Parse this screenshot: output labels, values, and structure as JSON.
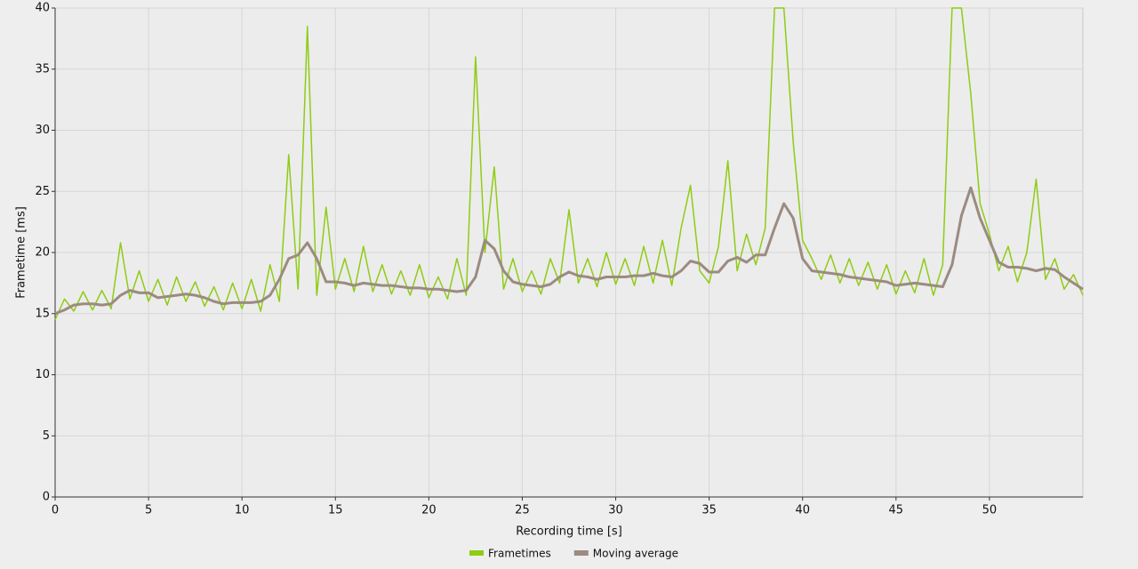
{
  "chart_data": {
    "type": "line",
    "x_label": "Recording time [s]",
    "y_label": "Frametime [ms]",
    "x": [
      0,
      0.5,
      1,
      1.5,
      2,
      2.5,
      3,
      3.5,
      4,
      4.5,
      5,
      5.5,
      6,
      6.5,
      7,
      7.5,
      8,
      8.5,
      9,
      9.5,
      10,
      10.5,
      11,
      11.5,
      12,
      12.5,
      13,
      13.5,
      14,
      14.5,
      15,
      15.5,
      16,
      16.5,
      17,
      17.5,
      18,
      18.5,
      19,
      19.5,
      20,
      20.5,
      21,
      21.5,
      22,
      22.5,
      23,
      23.5,
      24,
      24.5,
      25,
      25.5,
      26,
      26.5,
      27,
      27.5,
      28,
      28.5,
      29,
      29.5,
      30,
      30.5,
      31,
      31.5,
      32,
      32.5,
      33,
      33.5,
      34,
      34.5,
      35,
      35.5,
      36,
      36.5,
      37,
      37.5,
      38,
      38.5,
      39,
      39.5,
      40,
      40.5,
      41,
      41.5,
      42,
      42.5,
      43,
      43.5,
      44,
      44.5,
      45,
      45.5,
      46,
      46.5,
      47,
      47.5,
      48,
      48.5,
      49,
      49.5,
      50,
      50.5,
      51,
      51.5,
      52,
      52.5,
      53,
      53.5,
      54,
      54.5,
      55
    ],
    "series": [
      {
        "name": "Frametimes",
        "color": "#8fcc14",
        "values": [
          14.5,
          16.2,
          15.2,
          16.8,
          15.3,
          16.9,
          15.4,
          20.8,
          16.2,
          18.5,
          16,
          17.8,
          15.7,
          18,
          16,
          17.6,
          15.6,
          17.2,
          15.3,
          17.5,
          15.4,
          17.8,
          15.2,
          19,
          16,
          28,
          17,
          38.5,
          16.5,
          23.7,
          17,
          19.5,
          16.8,
          20.5,
          16.8,
          19,
          16.6,
          18.5,
          16.5,
          19,
          16.3,
          18,
          16.2,
          19.5,
          16.5,
          36,
          20,
          27,
          17,
          19.5,
          16.8,
          18.5,
          16.6,
          19.5,
          17.5,
          23.5,
          17.5,
          19.5,
          17.2,
          20,
          17.4,
          19.5,
          17.3,
          20.5,
          17.5,
          21,
          17.3,
          22,
          25.5,
          18.5,
          17.5,
          20.5,
          27.5,
          18.5,
          21.5,
          19,
          22,
          40,
          40,
          29,
          21,
          19.5,
          17.8,
          19.8,
          17.5,
          19.5,
          17.3,
          19.2,
          17,
          19,
          16.6,
          18.5,
          16.7,
          19.5,
          16.5,
          19,
          40,
          40,
          33,
          24,
          21.5,
          18.5,
          20.5,
          17.6,
          20,
          26,
          17.8,
          19.5,
          17,
          18.2,
          16.5
        ]
      },
      {
        "name": "Moving average",
        "color": "#9b8b80",
        "values": [
          15,
          15.3,
          15.7,
          15.8,
          15.8,
          15.7,
          15.8,
          16.5,
          16.9,
          16.7,
          16.7,
          16.3,
          16.4,
          16.5,
          16.6,
          16.5,
          16.3,
          16,
          15.8,
          15.9,
          15.9,
          15.9,
          16,
          16.5,
          17.8,
          19.5,
          19.8,
          20.8,
          19.5,
          17.6,
          17.6,
          17.5,
          17.3,
          17.5,
          17.4,
          17.3,
          17.3,
          17.2,
          17.1,
          17.1,
          17,
          17,
          16.9,
          16.8,
          16.9,
          18,
          21,
          20.3,
          18.5,
          17.6,
          17.4,
          17.3,
          17.2,
          17.4,
          18,
          18.4,
          18.1,
          18,
          17.8,
          18,
          18,
          18,
          18.1,
          18.1,
          18.3,
          18.1,
          18,
          18.5,
          19.3,
          19.1,
          18.4,
          18.4,
          19.3,
          19.6,
          19.2,
          19.8,
          19.8,
          22,
          24,
          22.8,
          19.5,
          18.5,
          18.4,
          18.3,
          18.2,
          18,
          17.9,
          17.8,
          17.7,
          17.6,
          17.3,
          17.4,
          17.5,
          17.4,
          17.3,
          17.2,
          19,
          23,
          25.3,
          22.8,
          21,
          19.2,
          18.8,
          18.8,
          18.7,
          18.5,
          18.7,
          18.6,
          18,
          17.5,
          17
        ]
      }
    ],
    "xlim": [
      0,
      55
    ],
    "ylim": [
      0,
      40
    ],
    "xticks": [
      0,
      5,
      10,
      15,
      20,
      25,
      30,
      35,
      40,
      45,
      50
    ],
    "yticks": [
      0,
      5,
      10,
      15,
      20,
      25,
      30,
      35,
      40
    ],
    "grid": true
  }
}
